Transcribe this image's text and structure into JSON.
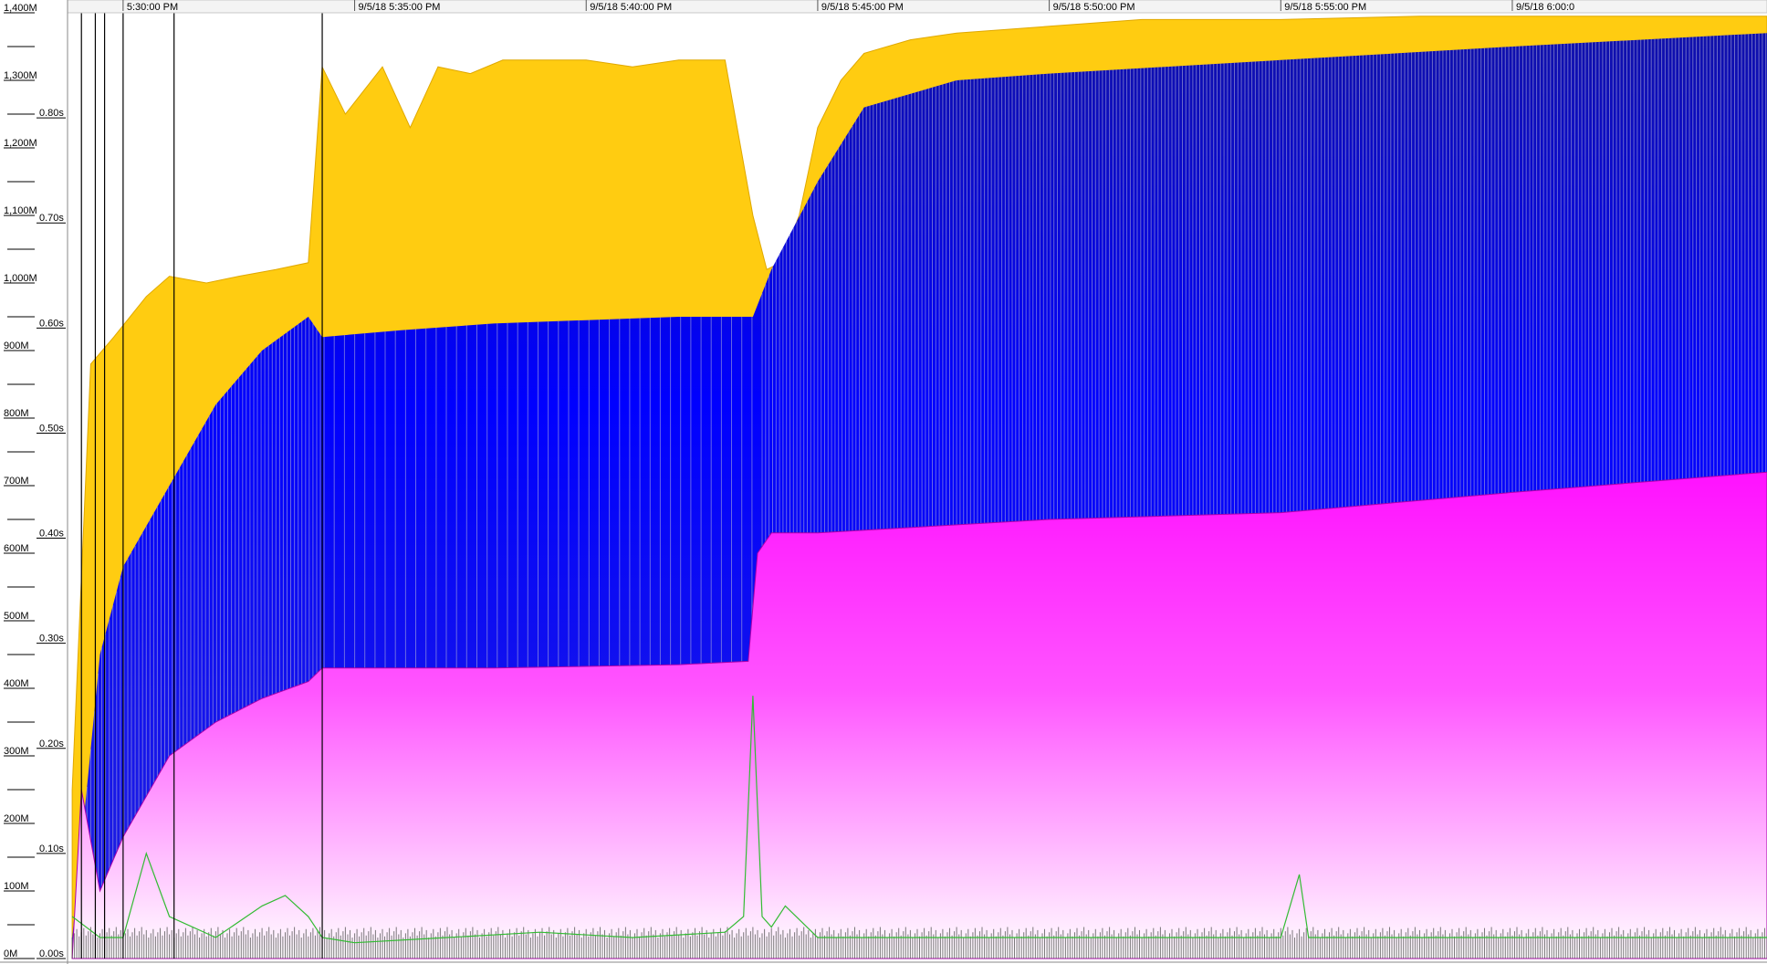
{
  "chart_data": {
    "type": "area",
    "x_axis": {
      "tick_labels": [
        "5:30:00 PM",
        "9/5/18 5:35:00 PM",
        "9/5/18 5:40:00 PM",
        "9/5/18 5:45:00 PM",
        "9/5/18 5:50:00 PM",
        "9/5/18 5:55:00 PM",
        "9/5/18 6:00:0"
      ],
      "range_minutes": [
        28.8,
        65.5
      ]
    },
    "y_axis_memory": {
      "tick_labels": [
        "0M",
        "100M",
        "200M",
        "300M",
        "400M",
        "500M",
        "600M",
        "700M",
        "800M",
        "900M",
        "1,000M",
        "1,100M",
        "1,200M",
        "1,300M",
        "1,400M"
      ],
      "ylim": [
        0,
        1400
      ]
    },
    "y_axis_time": {
      "tick_labels": [
        "0.00s",
        "0.10s",
        "0.20s",
        "0.30s",
        "0.40s",
        "0.50s",
        "0.60s",
        "0.70s",
        "0.80s"
      ],
      "ylim": [
        0,
        0.9
      ]
    },
    "colors": {
      "total_heap": "#ffcc11",
      "total_heap_light": "#f5dc80",
      "used_heap": "#0000ff",
      "old_gen": "#ff11ff",
      "gc_pause": "#33bb33",
      "gc_events": "#444444"
    },
    "series": [
      {
        "style": "area",
        "color": "#ffcc11",
        "x": [
          28.9,
          29.3,
          29.8,
          30.5,
          31.0,
          31.8,
          32.5,
          33.3,
          34.0,
          34.3,
          34.8,
          35.6,
          36.2,
          36.8,
          37.5,
          38.2,
          39.0,
          40.0,
          41.0,
          42.0,
          43.0,
          43.6,
          43.9,
          44.2,
          44.6,
          45.0,
          45.5,
          46.0,
          47.0,
          48.0,
          50.0,
          52.0,
          55.0,
          58.0,
          61.0,
          64.0,
          65.5
        ],
        "y": [
          250,
          880,
          920,
          980,
          1010,
          1000,
          1010,
          1020,
          1030,
          1320,
          1250,
          1320,
          1230,
          1320,
          1310,
          1330,
          1330,
          1330,
          1320,
          1330,
          1330,
          1100,
          1020,
          1030,
          1100,
          1230,
          1300,
          1340,
          1360,
          1370,
          1380,
          1390,
          1390,
          1395,
          1395,
          1395,
          1395
        ]
      },
      {
        "style": "area",
        "color": "#0000ff",
        "x": [
          28.9,
          29.5,
          30.0,
          31.0,
          32.0,
          33.0,
          34.0,
          34.3,
          36.0,
          38.0,
          40.0,
          42.0,
          43.6,
          44.0,
          45.0,
          46.0,
          48.0,
          50.0,
          55.0,
          60.0,
          65.5
        ],
        "y": [
          30,
          450,
          580,
          700,
          820,
          900,
          950,
          920,
          930,
          940,
          945,
          950,
          950,
          1020,
          1150,
          1260,
          1300,
          1310,
          1330,
          1350,
          1370
        ]
      },
      {
        "style": "area",
        "color": "#ff11ff",
        "x": [
          28.9,
          29.1,
          29.5,
          30.0,
          31.0,
          32.0,
          33.0,
          34.0,
          34.3,
          38.0,
          42.0,
          43.5,
          43.7,
          44.0,
          45.0,
          50.0,
          55.0,
          60.0,
          65.5
        ],
        "y": [
          0,
          250,
          100,
          180,
          300,
          350,
          385,
          410,
          430,
          430,
          435,
          440,
          600,
          630,
          630,
          650,
          660,
          690,
          720
        ]
      },
      {
        "style": "line",
        "color": "#33bb33",
        "axis": "time",
        "x": [
          28.9,
          29.5,
          30.0,
          30.5,
          31.0,
          32.0,
          33.0,
          33.5,
          34.0,
          34.3,
          35.0,
          37.0,
          39.0,
          41.0,
          43.0,
          43.4,
          43.6,
          43.8,
          44.0,
          44.3,
          45.0,
          50.0,
          55.0,
          55.4,
          55.6,
          60.0,
          65.5
        ],
        "y": [
          0.04,
          0.02,
          0.02,
          0.1,
          0.04,
          0.02,
          0.05,
          0.06,
          0.04,
          0.02,
          0.015,
          0.02,
          0.025,
          0.02,
          0.025,
          0.04,
          0.25,
          0.04,
          0.03,
          0.05,
          0.02,
          0.02,
          0.02,
          0.08,
          0.02,
          0.02,
          0.02
        ]
      }
    ],
    "legend": "none",
    "grid": false
  }
}
